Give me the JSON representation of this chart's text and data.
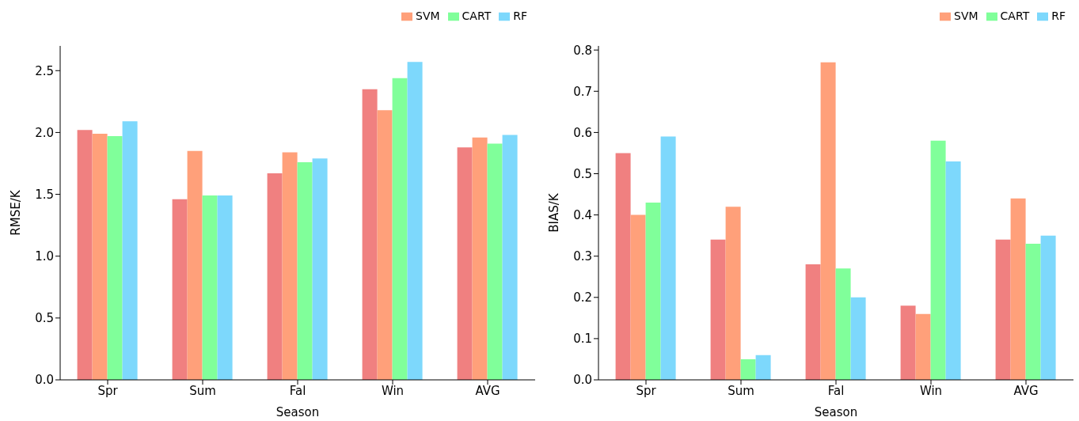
{
  "chart_data": [
    {
      "type": "bar",
      "xlabel": "Season",
      "ylabel": "RMSE/K",
      "categories": [
        "Spr",
        "Sum",
        "Fal",
        "Win",
        "AVG"
      ],
      "ylim": [
        0,
        2.7
      ],
      "yticks": [
        {
          "value": 0,
          "label": "0.0"
        },
        0.5,
        {
          "value": 1,
          "label": "1.0"
        },
        1.5,
        {
          "value": 2,
          "label": "2.0"
        },
        2.5
      ],
      "grid": false,
      "legend": "top right",
      "series": [
        {
          "color": "#f08080",
          "values": [
            2.02,
            1.46,
            1.67,
            2.35,
            1.88
          ]
        },
        {
          "name": "SVM",
          "color": "#ffa07a",
          "values": [
            1.99,
            1.85,
            1.84,
            2.18,
            1.96
          ]
        },
        {
          "name": "CART",
          "color": "#80ff9a",
          "values": [
            1.97,
            1.49,
            1.76,
            2.44,
            1.91
          ]
        },
        {
          "name": "RF",
          "color": "#7dd8fc",
          "values": [
            2.09,
            1.49,
            1.79,
            2.57,
            1.98
          ]
        }
      ]
    },
    {
      "type": "bar",
      "xlabel": "Season",
      "ylabel": "BIAS/K",
      "categories": [
        "Spr",
        "Sum",
        "Fal",
        "Win",
        "AVG"
      ],
      "ylim": [
        0,
        0.81
      ],
      "yticks": [
        {
          "value": 0,
          "label": "0.0"
        },
        0.1,
        0.2,
        0.3,
        0.4,
        0.5,
        0.6,
        0.7,
        0.8
      ],
      "grid": false,
      "legend": "top right",
      "series": [
        {
          "color": "#f08080",
          "values": [
            0.55,
            0.34,
            0.28,
            0.18,
            0.34
          ]
        },
        {
          "name": "SVM",
          "color": "#ffa07a",
          "values": [
            0.4,
            0.42,
            0.77,
            0.16,
            0.44
          ]
        },
        {
          "name": "CART",
          "color": "#80ff9a",
          "values": [
            0.43,
            0.05,
            0.27,
            0.58,
            0.33
          ]
        },
        {
          "name": "RF",
          "color": "#7dd8fc",
          "values": [
            0.59,
            0.06,
            0.2,
            0.53,
            0.35
          ]
        }
      ]
    }
  ]
}
